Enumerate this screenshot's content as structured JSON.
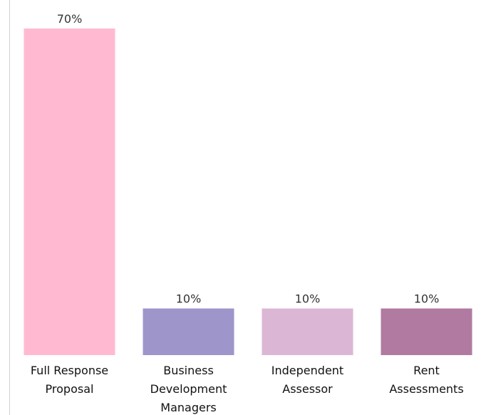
{
  "chart_data": {
    "type": "bar",
    "title": "",
    "xlabel": "",
    "ylabel": "",
    "unit": "%",
    "ylim": [
      0,
      70
    ],
    "grid": false,
    "legend": "none",
    "categories": [
      [
        "Full Response",
        "Proposal"
      ],
      [
        "Business",
        "Development",
        "Managers"
      ],
      [
        "Independent",
        "Assessor"
      ],
      [
        "Rent",
        "Assessments"
      ]
    ],
    "values": [
      70,
      10,
      10,
      10
    ],
    "value_labels": [
      "70%",
      "10%",
      "10%",
      "10%"
    ],
    "colors": [
      "#ffbad1",
      "#9e96ca",
      "#dcb6d5",
      "#b07aa1"
    ]
  }
}
